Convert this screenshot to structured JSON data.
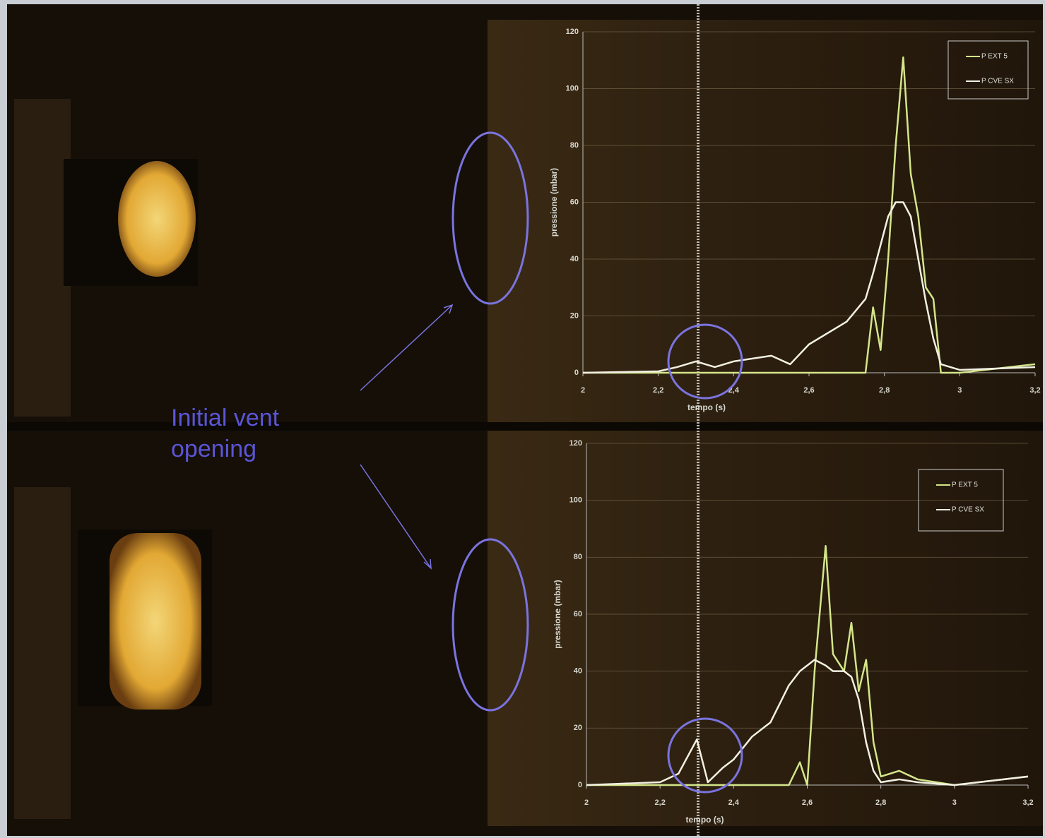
{
  "annotation": "Initial vent opening",
  "chart_data": [
    {
      "type": "line",
      "xlabel": "tempo (s)",
      "ylabel": "pressione (mbar)",
      "x": [
        2,
        2.2,
        2.25,
        2.3,
        2.35,
        2.4,
        2.5,
        2.55,
        2.6,
        2.7,
        2.75,
        2.77,
        2.79,
        2.81,
        2.83,
        2.85,
        2.87,
        2.89,
        2.91,
        2.93,
        2.95,
        3,
        3.2
      ],
      "series": [
        {
          "name": "P EXT 5",
          "color": "#d4e68a",
          "values": [
            0,
            0,
            0,
            0,
            0,
            0,
            0,
            0,
            0,
            0,
            0,
            23,
            8,
            40,
            80,
            111,
            70,
            55,
            30,
            26,
            0,
            0,
            3
          ]
        },
        {
          "name": "P CVE SX",
          "color": "#f2f0e2",
          "values": [
            0,
            0.5,
            2,
            4,
            2,
            4,
            6,
            3,
            10,
            18,
            26,
            35,
            45,
            55,
            60,
            60,
            55,
            40,
            25,
            12,
            3,
            1,
            2
          ]
        }
      ],
      "xlim": [
        2,
        3.2
      ],
      "xticks": [
        2,
        {
          "value": 2.2,
          "label": "2,2"
        },
        {
          "value": 2.4,
          "label": "2,4"
        },
        {
          "value": 2.6,
          "label": "2,6"
        },
        {
          "value": 2.8,
          "label": "2,8"
        },
        3,
        {
          "value": 3.2,
          "label": "3,2"
        }
      ],
      "ylim": [
        0,
        120
      ],
      "yticks": [
        0,
        20,
        40,
        60,
        80,
        100,
        120
      ],
      "grid": true
    },
    {
      "type": "line",
      "xlabel": "tempo (s)",
      "ylabel": "pressione (mbar)",
      "x": [
        2,
        2.2,
        2.25,
        2.3,
        2.33,
        2.37,
        2.4,
        2.45,
        2.5,
        2.55,
        2.58,
        2.6,
        2.62,
        2.65,
        2.67,
        2.7,
        2.72,
        2.74,
        2.76,
        2.78,
        2.8,
        2.85,
        2.9,
        3,
        3.2
      ],
      "series": [
        {
          "name": "P EXT 5",
          "color": "#d4e68a",
          "values": [
            0,
            0,
            0,
            0,
            0,
            0,
            0,
            0,
            0,
            0,
            8,
            0,
            40,
            84,
            46,
            40,
            57,
            33,
            44,
            15,
            3,
            5,
            2,
            0,
            3
          ]
        },
        {
          "name": "P CVE SX",
          "color": "#f2f0e2",
          "values": [
            0,
            1,
            4,
            16,
            1,
            6,
            9,
            17,
            22,
            35,
            40,
            42,
            44,
            42,
            40,
            40,
            38,
            30,
            15,
            5,
            1,
            2,
            1,
            0,
            3
          ]
        }
      ],
      "xlim": [
        2,
        3.2
      ],
      "xticks": [
        2,
        {
          "value": 2.2,
          "label": "2,2"
        },
        {
          "value": 2.4,
          "label": "2,4"
        },
        {
          "value": 2.6,
          "label": "2,6"
        },
        {
          "value": 2.8,
          "label": "2,8"
        },
        3,
        {
          "value": 3.2,
          "label": "3,2"
        }
      ],
      "ylim": [
        0,
        120
      ],
      "yticks": [
        0,
        20,
        40,
        60,
        80,
        100,
        120
      ],
      "grid": true
    }
  ]
}
